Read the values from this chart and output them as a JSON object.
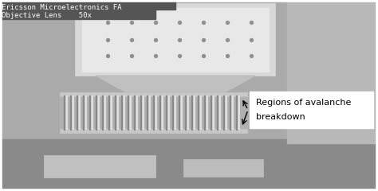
{
  "fig_width": 4.74,
  "fig_height": 2.4,
  "dpi": 100,
  "bg_color": "#aaaaaa",
  "header_text_line1": "Ericsson Microelectronics FA",
  "header_text_line2": "Objective Lens    50x",
  "header_bg": "#555555",
  "header_text_color": "#ffffff",
  "annotation_text_line1": "Regions of avalanche",
  "annotation_text_line2": "breakdown",
  "annotation_box_color": "#ffffff",
  "annotation_text_color": "#000000",
  "border_color": "#000000",
  "pad_color": "#d8d8d8",
  "pad_border": "#999999",
  "triangle_color": "#c0c0c0",
  "finger_light": "#e0e0e0",
  "finger_dark": "#888888",
  "finger_bg": "#b0b0b0",
  "bottom_bg": "#909090",
  "bottom_rect_color": "#c8c8c8"
}
